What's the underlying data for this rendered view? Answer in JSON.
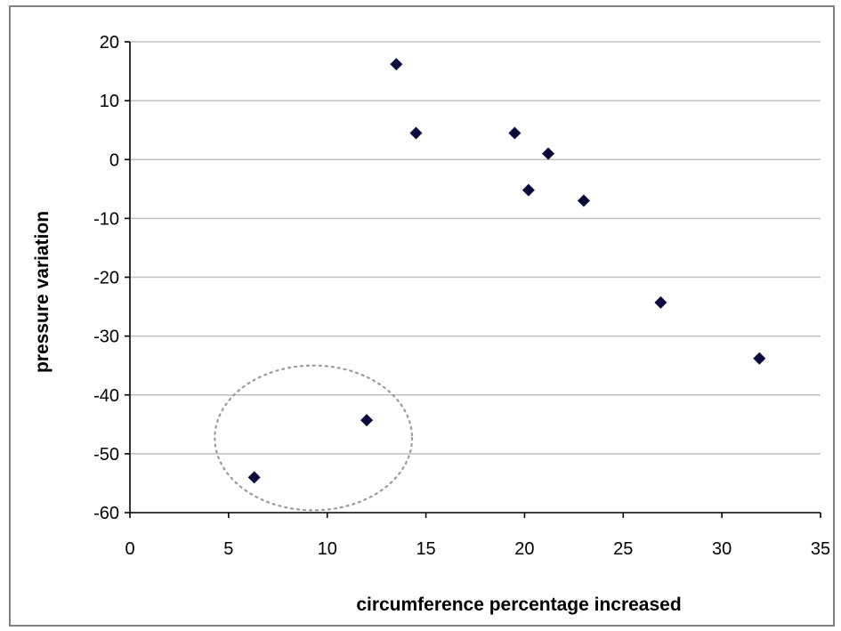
{
  "chart_data": {
    "type": "scatter",
    "title": "",
    "xlabel": "circumference percentage increased",
    "ylabel": "pressure variation",
    "xlim": [
      0,
      35
    ],
    "ylim": [
      -60,
      20
    ],
    "x_ticks": [
      0,
      5,
      10,
      15,
      20,
      25,
      30,
      35
    ],
    "y_ticks": [
      20,
      10,
      0,
      -10,
      -20,
      -30,
      -40,
      -50,
      -60
    ],
    "grid": "horizontal",
    "legend": "none",
    "marker": "diamond",
    "marker_color": "#0a0a3c",
    "grid_color": "#c0c0c0",
    "series": [
      {
        "points": [
          {
            "x": 13.5,
            "y": 16.2
          },
          {
            "x": 14.5,
            "y": 4.5
          },
          {
            "x": 19.5,
            "y": 4.5
          },
          {
            "x": 21.2,
            "y": 1.0
          },
          {
            "x": 20.2,
            "y": -5.2
          },
          {
            "x": 23.0,
            "y": -7.0
          },
          {
            "x": 26.9,
            "y": -24.3
          },
          {
            "x": 31.9,
            "y": -33.8
          },
          {
            "x": 12.0,
            "y": -44.3
          },
          {
            "x": 6.3,
            "y": -54.0
          }
        ]
      }
    ],
    "annotations": [
      {
        "type": "dashed-ellipse",
        "center": {
          "x": 9.3,
          "y": -47.3
        },
        "radius_x": 5.0,
        "radius_y": 12.3
      }
    ]
  }
}
